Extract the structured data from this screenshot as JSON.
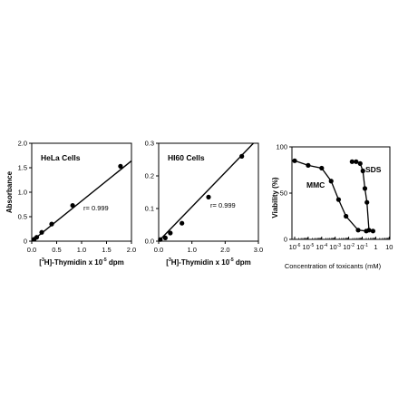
{
  "chart_data": [
    {
      "type": "scatter",
      "title": "HeLa Cells",
      "xlabel": "[3H]-Thymidin x 10-5 dpm",
      "xlabel_parts": {
        "pre": "[",
        "sup1": "3",
        "mid": "H]-Thymidin x 10",
        "sup2": "-5",
        "post": " dpm"
      },
      "ylabel": "Absorbance",
      "xlim": [
        0,
        2.0
      ],
      "ylim": [
        0,
        2.0
      ],
      "xticks": [
        "0.0",
        "0.5",
        "1.0",
        "1.5",
        "2.0"
      ],
      "yticks": [
        "0",
        "0.5",
        "1.0",
        "1.5",
        "2.0"
      ],
      "annotation": "r= 0.999",
      "points": [
        [
          0.05,
          0.04
        ],
        [
          0.1,
          0.08
        ],
        [
          0.2,
          0.18
        ],
        [
          0.4,
          0.35
        ],
        [
          0.82,
          0.73
        ],
        [
          1.78,
          1.53
        ]
      ],
      "fit_line": [
        [
          0,
          0.0
        ],
        [
          2.0,
          1.64
        ]
      ]
    },
    {
      "type": "scatter",
      "title": "HI60 Cells",
      "xlabel": "[3H]-Thymidin x 10-5 dpm",
      "xlabel_parts": {
        "pre": "[",
        "sup1": "3",
        "mid": "H]-Thymidin x 10",
        "sup2": "-5",
        "post": " dpm"
      },
      "ylabel": "",
      "xlim": [
        0,
        3.0
      ],
      "ylim": [
        0,
        0.3
      ],
      "xticks": [
        "0.0",
        "1.0",
        "2.0",
        "3.0"
      ],
      "yticks": [
        "0.0",
        "0.1",
        "0.2",
        "0.3"
      ],
      "annotation": "r= 0.999",
      "points": [
        [
          0.05,
          0.005
        ],
        [
          0.2,
          0.01
        ],
        [
          0.35,
          0.025
        ],
        [
          0.7,
          0.055
        ],
        [
          1.5,
          0.135
        ],
        [
          2.5,
          0.26
        ]
      ],
      "fit_line": [
        [
          0,
          0.0
        ],
        [
          2.85,
          0.3
        ]
      ]
    },
    {
      "type": "line",
      "title": "",
      "xlabel": "Concentration of toxicants (mM)",
      "ylabel": "Viability (%)",
      "xscale": "log",
      "xlim_exp": [
        -6,
        1
      ],
      "ylim": [
        0,
        100
      ],
      "xticks": [
        {
          "base": "10",
          "exp": "-6"
        },
        {
          "base": "10",
          "exp": "-5"
        },
        {
          "base": "10",
          "exp": "-4"
        },
        {
          "base": "10",
          "exp": "-3"
        },
        {
          "base": "10",
          "exp": "-2"
        },
        {
          "base": "10",
          "exp": "-1"
        },
        {
          "base": "1",
          "exp": ""
        },
        {
          "base": "10",
          "exp": ""
        }
      ],
      "yticks": [
        "0",
        "50",
        "100"
      ],
      "series": [
        {
          "name": "MMC",
          "x": [
            -6.0,
            -5.0,
            -4.0,
            -3.3,
            -2.75,
            -2.2,
            -1.3,
            -0.7,
            -0.2
          ],
          "y": [
            85,
            80,
            77,
            63,
            43,
            25,
            10,
            9,
            9
          ]
        },
        {
          "name": "SDS",
          "x": [
            -1.75,
            -1.45,
            -1.15,
            -0.95,
            -0.8,
            -0.65,
            -0.5
          ],
          "y": [
            84,
            84,
            82,
            74,
            55,
            40,
            10
          ]
        }
      ]
    }
  ]
}
